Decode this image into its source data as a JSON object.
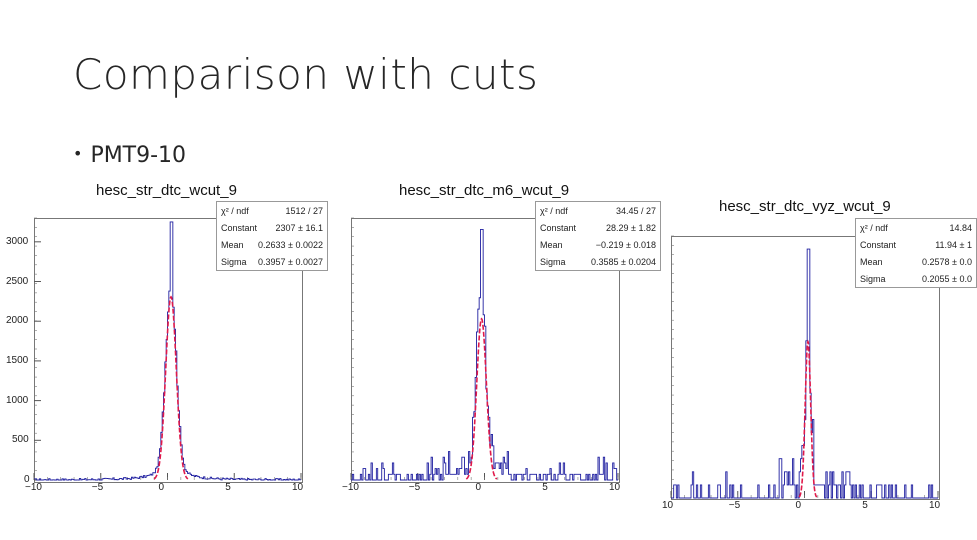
{
  "slide": {
    "title": "Comparison with cuts",
    "bullet": "PMT9-10"
  },
  "colors": {
    "histogram": "#1f1fa0",
    "fit": "#e0194a",
    "axis": "#777777"
  },
  "chart_data": [
    {
      "type": "histogram",
      "title": "hesc_str_dtc_wcut_9",
      "stats": [
        {
          "label": "χ² / ndf",
          "value": "1512 / 27"
        },
        {
          "label": "Constant",
          "value": "2307 ± 16.1"
        },
        {
          "label": "Mean",
          "value": "0.2633 ± 0.0022"
        },
        {
          "label": "Sigma",
          "value": "0.3957 ± 0.0027"
        }
      ],
      "xlim": [
        -10,
        10
      ],
      "ylim": [
        0,
        3300
      ],
      "xticks": [
        "−10",
        "−5",
        "0",
        "5",
        "10"
      ],
      "yticks": [
        "0",
        "500",
        "1000",
        "1500",
        "2000",
        "2500",
        "3000"
      ],
      "fit": {
        "function": "gaus",
        "constant": 2307,
        "mean": 0.2633,
        "sigma": 0.3957
      },
      "peak_value": 3250
    },
    {
      "type": "histogram",
      "title": "hesc_str_dtc_m6_wcut_9",
      "stats": [
        {
          "label": "χ² / ndf",
          "value": "34.45 / 27"
        },
        {
          "label": "Constant",
          "value": "28.29 ± 1.82"
        },
        {
          "label": "Mean",
          "value": "−0.219 ± 0.018"
        },
        {
          "label": "Sigma",
          "value": "0.3585 ± 0.0204"
        }
      ],
      "xlim": [
        -10,
        10
      ],
      "ylim": [
        0,
        46
      ],
      "xticks": [
        "−10",
        "−5",
        "0",
        "5",
        "10"
      ],
      "yticks": [],
      "fit": {
        "function": "gaus",
        "constant": 28.29,
        "mean": -0.219,
        "sigma": 0.3585
      },
      "peak_value": 44
    },
    {
      "type": "histogram",
      "title": "hesc_str_dtc_vyz_wcut_9",
      "stats": [
        {
          "label": "χ² / ndf",
          "value": "14.84"
        },
        {
          "label": "Constant",
          "value": "11.94 ± 1"
        },
        {
          "label": "Mean",
          "value": "0.2578 ± 0.0"
        },
        {
          "label": "Sigma",
          "value": "0.2055 ± 0.0"
        }
      ],
      "xlim": [
        -10,
        10
      ],
      "ylim": [
        0,
        20
      ],
      "xticks": [
        "10",
        "−5",
        "0",
        "5",
        "10"
      ],
      "yticks": [],
      "fit": {
        "function": "gaus",
        "constant": 11.94,
        "mean": 0.2578,
        "sigma": 0.2055
      },
      "peak_value": 19
    }
  ]
}
